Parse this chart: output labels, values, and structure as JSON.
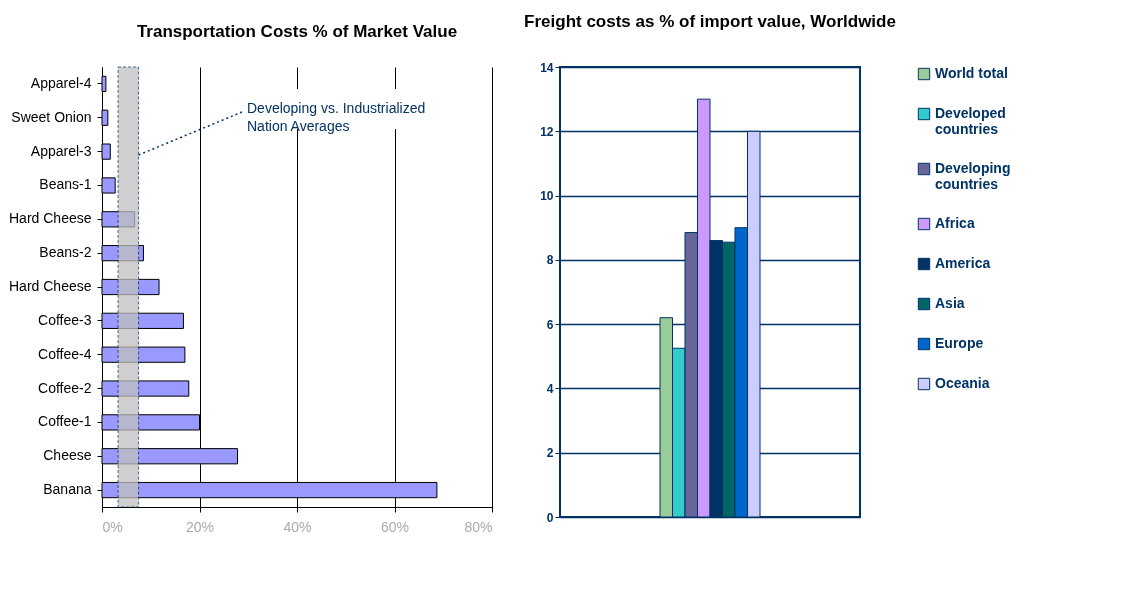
{
  "chart_data": [
    {
      "type": "bar",
      "orientation": "horizontal",
      "title": "Transportation Costs % of Market Value",
      "categories": [
        "Apparel-4",
        "Sweet Onion",
        "Apparel-3",
        "Beans-1",
        "Hard Cheese",
        "Beans-2",
        "Hard Cheese",
        "Coffee-3",
        "Coffee-4",
        "Coffee-2",
        "Coffee-1",
        "Cheese",
        "Banana"
      ],
      "values": [
        0.8,
        1.2,
        1.7,
        2.7,
        6.7,
        8.5,
        11.7,
        16.7,
        17,
        17.8,
        20,
        27.8,
        68.7
      ],
      "color": "#9999ff",
      "xlim": [
        0,
        80
      ],
      "xticks": [
        {
          "value": 0,
          "label": "0%"
        },
        {
          "value": 20,
          "label": "20%"
        },
        {
          "value": 40,
          "label": "40%"
        },
        {
          "value": 60,
          "label": "60%"
        },
        {
          "value": 80,
          "label": "80%"
        }
      ],
      "grid": "x",
      "bands": [
        {
          "axis": "x",
          "from": 3.3,
          "to": 7.5,
          "label": "Developing vs. Industrialized Nation Averages",
          "color": "#c0c0c0"
        }
      ]
    },
    {
      "type": "bar",
      "title": "Freight costs as % of import value, Worldwide",
      "categories": [
        null
      ],
      "series": [
        {
          "name": "World total",
          "color": "#99cc99",
          "values": [
            6.2
          ]
        },
        {
          "name": "Developed countries",
          "color": "#33cccc",
          "values": [
            5.25
          ]
        },
        {
          "name": "Developing countries",
          "color": "#666699",
          "values": [
            8.85
          ]
        },
        {
          "name": "Africa",
          "color": "#cc99ff",
          "values": [
            13.0
          ]
        },
        {
          "name": "America",
          "color": "#003366",
          "values": [
            8.6
          ]
        },
        {
          "name": "Asia",
          "color": "#006666",
          "values": [
            8.55
          ]
        },
        {
          "name": "Europe",
          "color": "#0066cc",
          "values": [
            9.0
          ]
        },
        {
          "name": "Oceania",
          "color": "#ccccff",
          "values": [
            12.0
          ]
        }
      ],
      "ylim": [
        0,
        14
      ],
      "yticks": [
        0,
        2,
        4,
        6,
        8,
        10,
        12,
        14
      ],
      "grid": "y",
      "legend": "right"
    }
  ]
}
